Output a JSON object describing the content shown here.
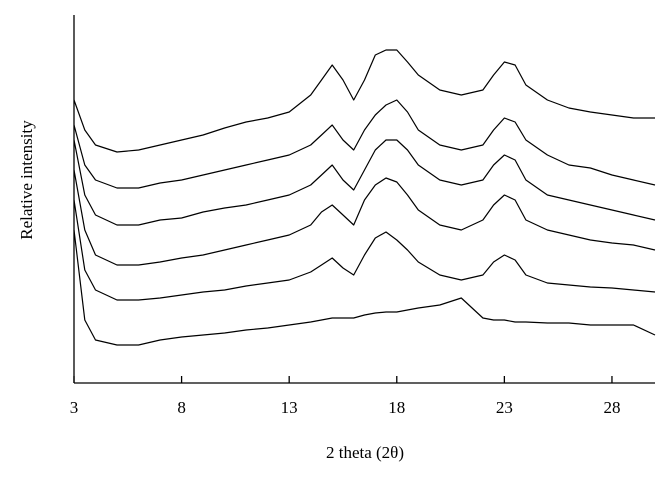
{
  "chart_data": {
    "type": "line",
    "x_label": "2 theta (2θ)",
    "y_label": "Relative intensity",
    "x": [
      3,
      3.5,
      4,
      5,
      6,
      7,
      8,
      9,
      10,
      11,
      12,
      13,
      14,
      14.5,
      15,
      15.5,
      16,
      16.5,
      17,
      17.5,
      18,
      18.5,
      19,
      20,
      21,
      22,
      22.5,
      23,
      23.5,
      24,
      25,
      26,
      27,
      28,
      29,
      30
    ],
    "series": [
      {
        "color": "#000000",
        "values": [
          283,
          253,
          238,
          231,
          233,
          238,
          243,
          248,
          255,
          261,
          265,
          271,
          288,
          303,
          318,
          303,
          283,
          303,
          328,
          333,
          333,
          321,
          308,
          293,
          288,
          293,
          308,
          321,
          318,
          298,
          283,
          275,
          271,
          268,
          265,
          265
        ]
      },
      {
        "color": "#000000",
        "values": [
          258,
          218,
          203,
          195,
          195,
          200,
          203,
          208,
          213,
          218,
          223,
          228,
          238,
          248,
          258,
          243,
          233,
          253,
          268,
          278,
          283,
          271,
          253,
          238,
          233,
          238,
          253,
          265,
          261,
          243,
          228,
          218,
          215,
          208,
          203,
          198
        ]
      },
      {
        "color": "#000000",
        "values": [
          243,
          188,
          168,
          158,
          158,
          163,
          165,
          171,
          175,
          178,
          183,
          188,
          198,
          208,
          218,
          203,
          193,
          213,
          233,
          243,
          243,
          233,
          218,
          203,
          198,
          203,
          218,
          228,
          223,
          203,
          188,
          183,
          178,
          173,
          168,
          163
        ]
      },
      {
        "color": "#000000",
        "values": [
          213,
          153,
          128,
          118,
          118,
          121,
          125,
          128,
          133,
          138,
          143,
          148,
          158,
          171,
          178,
          168,
          158,
          183,
          198,
          205,
          201,
          188,
          173,
          158,
          153,
          163,
          178,
          188,
          183,
          163,
          153,
          148,
          143,
          140,
          138,
          133
        ]
      },
      {
        "color": "#000000",
        "values": [
          183,
          113,
          93,
          83,
          83,
          85,
          88,
          91,
          93,
          97,
          100,
          103,
          111,
          118,
          125,
          115,
          108,
          128,
          145,
          151,
          143,
          133,
          121,
          108,
          103,
          108,
          121,
          128,
          123,
          108,
          100,
          98,
          96,
          95,
          93,
          91
        ]
      },
      {
        "color": "#000000",
        "values": [
          153,
          63,
          43,
          38,
          38,
          43,
          46,
          48,
          50,
          53,
          55,
          58,
          61,
          63,
          65,
          65,
          65,
          68,
          70,
          71,
          71,
          73,
          75,
          78,
          85,
          65,
          63,
          63,
          61,
          61,
          60,
          60,
          58,
          58,
          58,
          48
        ]
      }
    ],
    "xlim": [
      3,
      30
    ],
    "xticks": [
      3,
      8,
      13,
      18,
      23,
      28
    ],
    "ylim": [
      0,
      368
    ]
  }
}
